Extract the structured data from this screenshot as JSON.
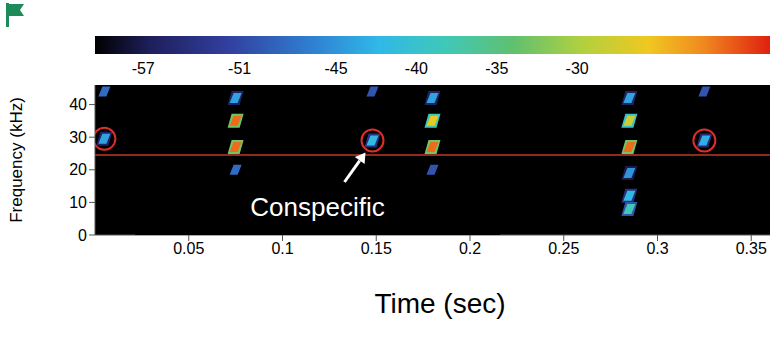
{
  "chart_data": {
    "type": "scatter",
    "xlabel": "Time (sec)",
    "ylabel": "Frequency (kHz)",
    "xlim": [
      0,
      0.36
    ],
    "ylim": [
      0,
      46
    ],
    "xticks": [
      0.05,
      0.1,
      0.15,
      0.2,
      0.25,
      0.3,
      0.35
    ],
    "yticks": [
      0,
      10,
      20,
      30,
      40
    ],
    "grid": false,
    "points": [
      {
        "x": 0.005,
        "y": 44,
        "level": -48
      },
      {
        "x": 0.005,
        "y": 29.5,
        "level": -44
      },
      {
        "x": 0.075,
        "y": 42,
        "level": -44
      },
      {
        "x": 0.075,
        "y": 35,
        "level": -21
      },
      {
        "x": 0.075,
        "y": 27,
        "level": -21
      },
      {
        "x": 0.075,
        "y": 20,
        "level": -48
      },
      {
        "x": 0.148,
        "y": 44,
        "level": -50
      },
      {
        "x": 0.148,
        "y": 29,
        "level": -42
      },
      {
        "x": 0.18,
        "y": 42,
        "level": -44
      },
      {
        "x": 0.18,
        "y": 35,
        "level": -26
      },
      {
        "x": 0.18,
        "y": 27,
        "level": -21
      },
      {
        "x": 0.18,
        "y": 20,
        "level": -50
      },
      {
        "x": 0.285,
        "y": 42,
        "level": -44
      },
      {
        "x": 0.285,
        "y": 35,
        "level": -28
      },
      {
        "x": 0.285,
        "y": 27,
        "level": -21
      },
      {
        "x": 0.285,
        "y": 19,
        "level": -45
      },
      {
        "x": 0.285,
        "y": 12,
        "level": -42
      },
      {
        "x": 0.285,
        "y": 8,
        "level": -38
      },
      {
        "x": 0.325,
        "y": 44,
        "level": -50
      },
      {
        "x": 0.325,
        "y": 29,
        "level": -43
      }
    ],
    "circles": [
      {
        "x": 0.005,
        "y": 29.5
      },
      {
        "x": 0.148,
        "y": 29
      },
      {
        "x": 0.325,
        "y": 29
      }
    ],
    "reference_line": {
      "y": 24.5,
      "color": "#c0392b"
    },
    "annotation": {
      "text": "Conspecific",
      "x": 0.148,
      "y": 29
    },
    "colorbar": {
      "range": [
        -60,
        -18
      ],
      "ticks": [
        -57,
        -51,
        -45,
        -40,
        -35,
        -30
      ]
    }
  }
}
